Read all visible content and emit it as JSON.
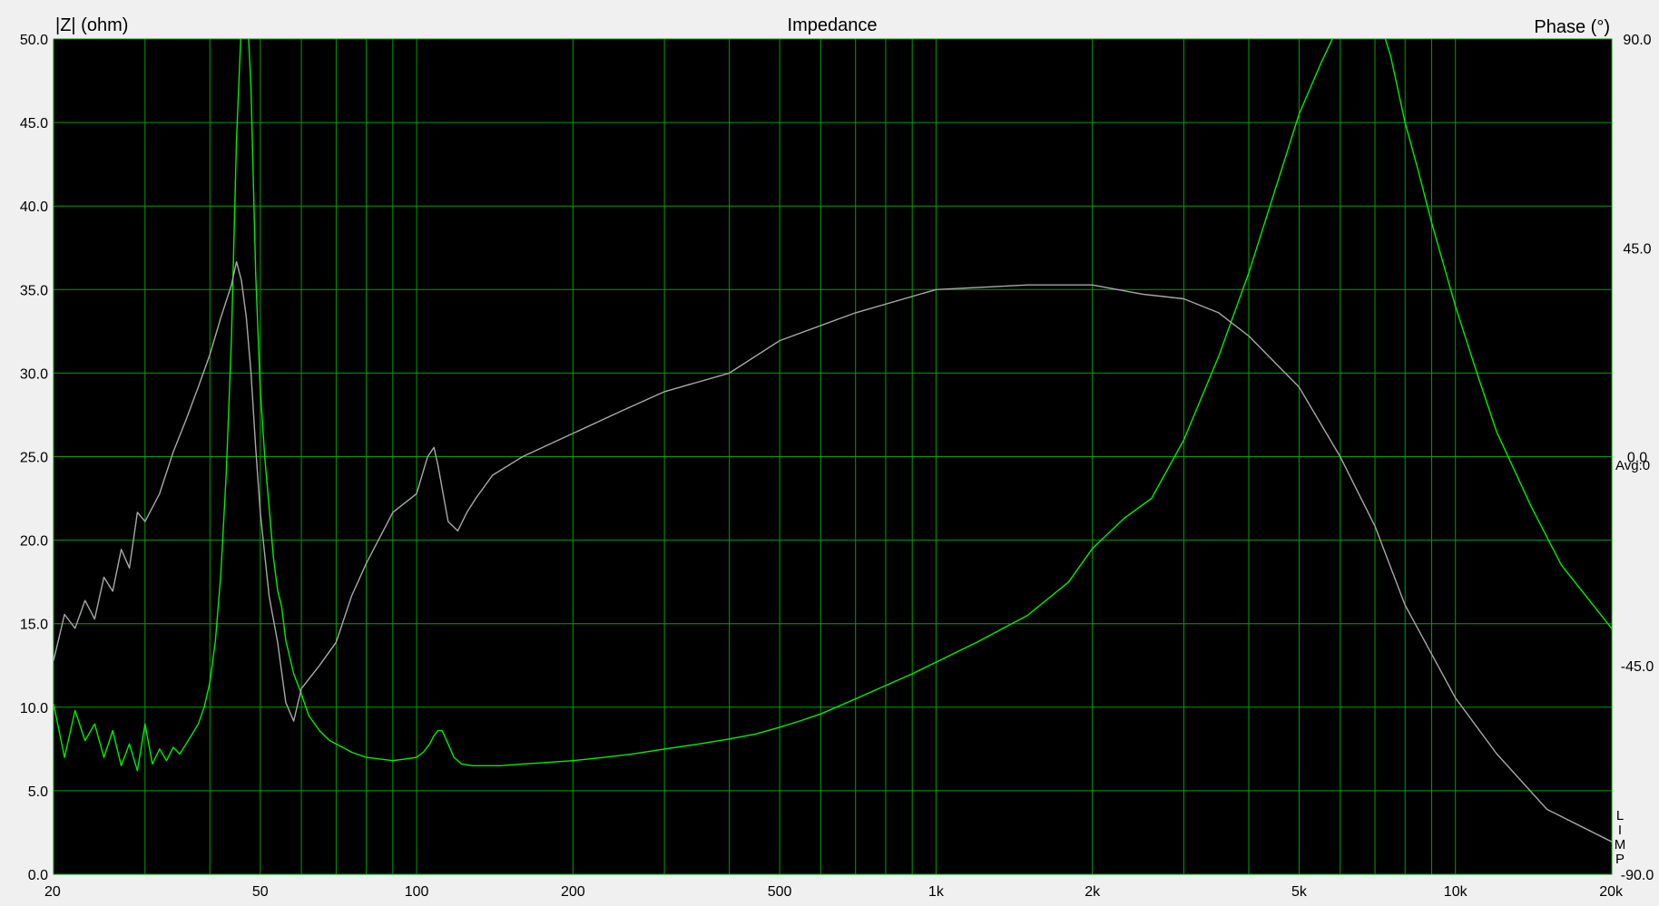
{
  "chart_data": {
    "type": "line",
    "title": "Impedance",
    "left_axis_label": "|Z| (ohm)",
    "right_axis_label": "Phase (°)",
    "x_scale": "log",
    "xlim": [
      20,
      20000
    ],
    "ylim": [
      0,
      50
    ],
    "y2lim": [
      -90,
      90
    ],
    "grid": true,
    "x_ticks": [
      {
        "value": 20,
        "label": "20"
      },
      {
        "value": 50,
        "label": "50"
      },
      {
        "value": 100,
        "label": "100"
      },
      {
        "value": 200,
        "label": "200"
      },
      {
        "value": 500,
        "label": "500"
      },
      {
        "value": 1000,
        "label": "1k"
      },
      {
        "value": 2000,
        "label": "2k"
      },
      {
        "value": 5000,
        "label": "5k"
      },
      {
        "value": 10000,
        "label": "10k"
      },
      {
        "value": 20000,
        "label": "20k"
      }
    ],
    "x_minor_grid": [
      30,
      40,
      60,
      70,
      80,
      90,
      300,
      400,
      600,
      700,
      800,
      900,
      3000,
      4000,
      6000,
      7000,
      8000,
      9000
    ],
    "y_ticks": [
      {
        "value": 0,
        "label": "0.0"
      },
      {
        "value": 5,
        "label": "5.0"
      },
      {
        "value": 10,
        "label": "10.0"
      },
      {
        "value": 15,
        "label": "15.0"
      },
      {
        "value": 20,
        "label": "20.0"
      },
      {
        "value": 25,
        "label": "25.0"
      },
      {
        "value": 30,
        "label": "30.0"
      },
      {
        "value": 35,
        "label": "35.0"
      },
      {
        "value": 40,
        "label": "40.0"
      },
      {
        "value": 45,
        "label": "45.0"
      },
      {
        "value": 50,
        "label": "50.0"
      }
    ],
    "y2_ticks": [
      {
        "value": 90,
        "label": "90.0"
      },
      {
        "value": 45,
        "label": "45.0"
      },
      {
        "value": 0,
        "label": "0.0"
      },
      {
        "value": -45,
        "label": "-45.0"
      },
      {
        "value": -90,
        "label": "-90.0"
      }
    ],
    "avg_label": "Avg:0",
    "side_letters": [
      "L",
      "I",
      "M",
      "P"
    ],
    "colors": {
      "plot_bg": "#000000",
      "grid": "#00a000",
      "impedance": "#00ee00",
      "phase": "#a8a8a8",
      "frame": "#808080"
    },
    "series": [
      {
        "axis": "left",
        "color": "#00ee00",
        "x": [
          20,
          21,
          22,
          23,
          24,
          25,
          26,
          27,
          28,
          29,
          30,
          31,
          32,
          33,
          34,
          35,
          36,
          37,
          38,
          39,
          40,
          41,
          42,
          43,
          44,
          45,
          46,
          47,
          48,
          49,
          50,
          51,
          52,
          53,
          54,
          55,
          56,
          58,
          60,
          62,
          65,
          68,
          72,
          75,
          80,
          85,
          90,
          95,
          100,
          103,
          106,
          108,
          110,
          112,
          115,
          118,
          122,
          128,
          135,
          145,
          160,
          180,
          200,
          230,
          260,
          300,
          350,
          400,
          450,
          500,
          550,
          600,
          700,
          800,
          900,
          1000,
          1200,
          1500,
          1800,
          2000,
          2300,
          2600,
          3000,
          3500,
          4000,
          4500,
          5000,
          5500,
          6000,
          6500,
          7000,
          7500,
          8000,
          8500,
          9000,
          10000,
          11000,
          12000,
          14000,
          16000,
          18000,
          20000
        ],
        "y": [
          10.2,
          7.0,
          9.8,
          8.0,
          9.0,
          7.0,
          8.6,
          6.5,
          7.8,
          6.2,
          9.0,
          6.6,
          7.5,
          6.8,
          7.6,
          7.2,
          7.8,
          8.4,
          9.0,
          10.0,
          11.5,
          14.0,
          18.0,
          24.0,
          32.0,
          44.0,
          51.0,
          53.0,
          47.0,
          36.0,
          29.0,
          25.0,
          22.0,
          19.0,
          17.0,
          16.0,
          14.0,
          12.0,
          10.8,
          9.5,
          8.6,
          8.0,
          7.6,
          7.3,
          7.0,
          6.9,
          6.8,
          6.9,
          7.0,
          7.3,
          7.8,
          8.3,
          8.6,
          8.6,
          7.8,
          7.0,
          6.6,
          6.5,
          6.5,
          6.5,
          6.6,
          6.7,
          6.8,
          7.0,
          7.2,
          7.5,
          7.8,
          8.1,
          8.4,
          8.8,
          9.2,
          9.6,
          10.5,
          11.3,
          12.0,
          12.7,
          13.9,
          15.5,
          17.5,
          19.5,
          21.3,
          22.5,
          26.0,
          31.0,
          36.0,
          41.0,
          45.5,
          48.5,
          51.0,
          53.0,
          52.0,
          49.0,
          45.0,
          42.0,
          39.0,
          34.0,
          30.0,
          26.5,
          22.0,
          18.5,
          16.5,
          14.7
        ]
      },
      {
        "axis": "right",
        "color": "#a8a8a8",
        "x": [
          20,
          21,
          22,
          23,
          24,
          25,
          26,
          27,
          28,
          29,
          30,
          32,
          34,
          36,
          38,
          40,
          42,
          44,
          45,
          46,
          47,
          48,
          49,
          50,
          52,
          54,
          56,
          58,
          60,
          65,
          70,
          75,
          80,
          90,
          100,
          105,
          108,
          110,
          115,
          120,
          125,
          130,
          140,
          160,
          200,
          250,
          300,
          400,
          500,
          700,
          1000,
          1500,
          2000,
          2500,
          3000,
          3500,
          4000,
          5000,
          6000,
          7000,
          8000,
          10000,
          12000,
          15000,
          20000
        ],
        "y": [
          -44,
          -34,
          -37,
          -31,
          -35,
          -26,
          -29,
          -20,
          -24,
          -12,
          -14,
          -8,
          1,
          8,
          15,
          22,
          30,
          37,
          42,
          38,
          30,
          18,
          2,
          -12,
          -30,
          -40,
          -53,
          -57,
          -50,
          -45,
          -40,
          -30,
          -23,
          -12,
          -8,
          0,
          2,
          -2,
          -14,
          -16,
          -12,
          -9,
          -4,
          0,
          5,
          10,
          14,
          18,
          25,
          31,
          36,
          37,
          37,
          35,
          34,
          31,
          26,
          15,
          0,
          -15,
          -32,
          -52,
          -64,
          -76,
          -83
        ]
      }
    ]
  }
}
